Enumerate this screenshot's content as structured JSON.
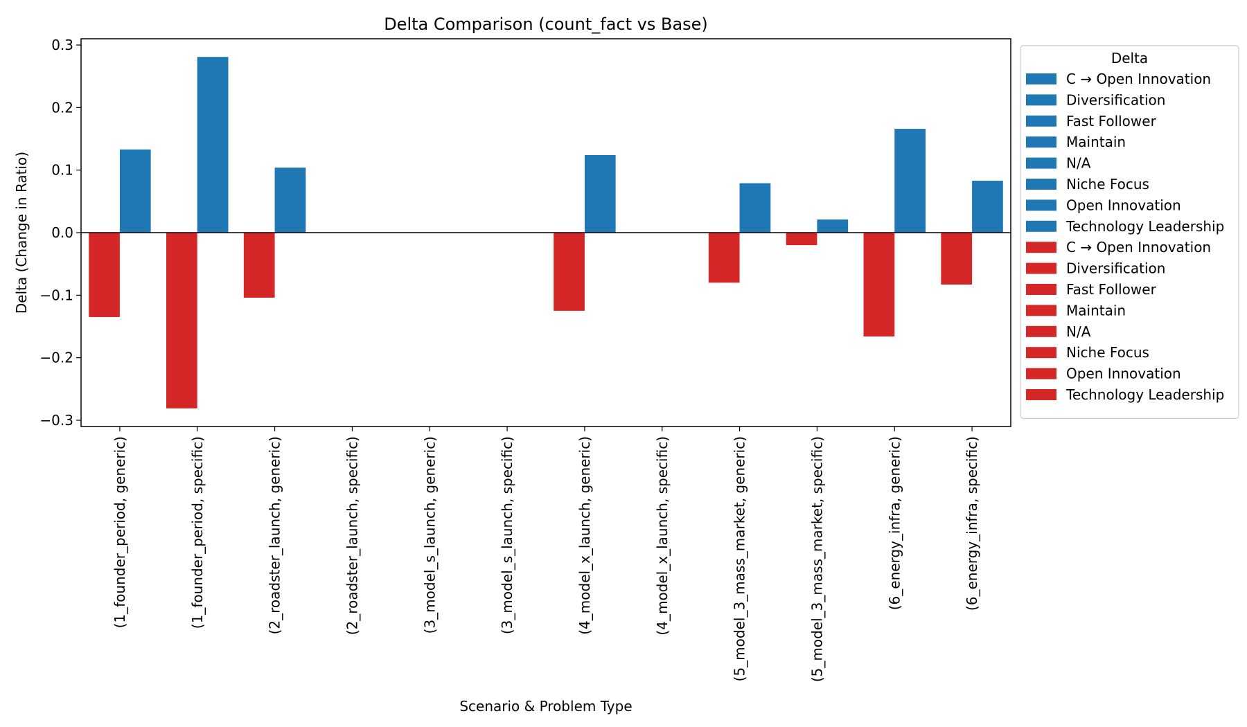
{
  "chart_data": {
    "type": "bar",
    "title": "Delta Comparison (count_fact vs Base)",
    "xlabel": "Scenario & Problem Type",
    "ylabel": "Delta (Change in Ratio)",
    "ylim": [
      -0.31,
      0.31
    ],
    "yticks": [
      -0.3,
      -0.2,
      -0.1,
      0.0,
      0.1,
      0.2,
      0.3
    ],
    "ytick_labels": [
      "−0.3",
      "−0.2",
      "−0.1",
      "0.0",
      "0.1",
      "0.2",
      "0.3"
    ],
    "grid": false,
    "categories": [
      "(1_founder_period, generic)",
      "(1_founder_period, specific)",
      "(2_roadster_launch, generic)",
      "(2_roadster_launch, specific)",
      "(3_model_s_launch, generic)",
      "(3_model_s_launch, specific)",
      "(4_model_x_launch, generic)",
      "(4_model_x_launch, specific)",
      "(5_model_3_mass_market, generic)",
      "(5_model_3_mass_market, specific)",
      "(6_energy_infra, generic)",
      "(6_energy_infra, specific)"
    ],
    "series": [
      {
        "color": "#d62728",
        "values": [
          -0.135,
          -0.281,
          -0.104,
          0,
          0,
          0,
          -0.125,
          0,
          -0.08,
          -0.02,
          -0.166,
          -0.083
        ]
      },
      {
        "color": "#1f77b4",
        "values": [
          0.133,
          0.281,
          0.104,
          0,
          0,
          0,
          0.124,
          0,
          0.079,
          0.021,
          0.166,
          0.083
        ]
      }
    ],
    "legend": {
      "title": "Delta",
      "position": "upper-right-outside",
      "entries": [
        {
          "label": "C → Open Innovation",
          "color": "#1f77b4"
        },
        {
          "label": "Diversification",
          "color": "#1f77b4"
        },
        {
          "label": "Fast Follower",
          "color": "#1f77b4"
        },
        {
          "label": "Maintain",
          "color": "#1f77b4"
        },
        {
          "label": "N/A",
          "color": "#1f77b4"
        },
        {
          "label": "Niche Focus",
          "color": "#1f77b4"
        },
        {
          "label": "Open Innovation",
          "color": "#1f77b4"
        },
        {
          "label": "Technology Leadership",
          "color": "#1f77b4"
        },
        {
          "label": "C → Open Innovation",
          "color": "#d62728"
        },
        {
          "label": "Diversification",
          "color": "#d62728"
        },
        {
          "label": "Fast Follower",
          "color": "#d62728"
        },
        {
          "label": "Maintain",
          "color": "#d62728"
        },
        {
          "label": "N/A",
          "color": "#d62728"
        },
        {
          "label": "Niche Focus",
          "color": "#d62728"
        },
        {
          "label": "Open Innovation",
          "color": "#d62728"
        },
        {
          "label": "Technology Leadership",
          "color": "#d62728"
        }
      ]
    }
  }
}
